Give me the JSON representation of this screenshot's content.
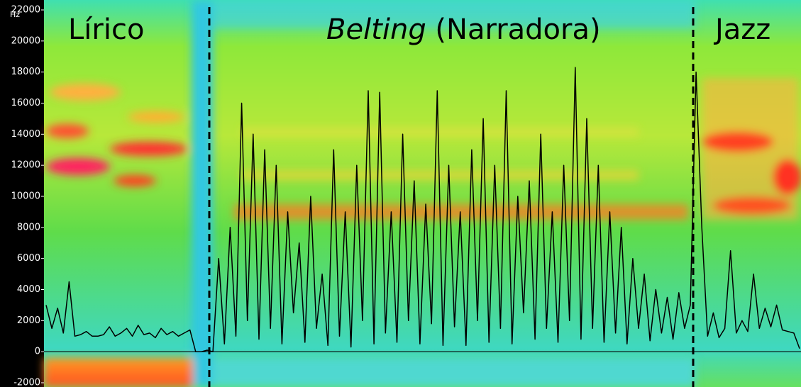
{
  "chart_data": {
    "type": "line",
    "y_unit": "Hz",
    "annotations": [
      "Lírico",
      "Belting",
      "(Narradora)",
      "Jazz"
    ],
    "series": [
      {
        "color": "#000000",
        "values": [
          3000,
          1500,
          2800,
          1200,
          4500,
          1000,
          1100,
          1300,
          1000,
          1000,
          1100,
          1600,
          1000,
          1200,
          1500,
          1000,
          1700,
          1100,
          1200,
          900,
          1500,
          1100,
          1300,
          1000,
          1200,
          1400,
          0,
          0,
          100,
          0,
          6000,
          500,
          8000,
          1000,
          16000,
          2000,
          14000,
          800,
          13000,
          1500,
          12000,
          500,
          9000,
          2500,
          7000,
          600,
          10000,
          1500,
          5000,
          400,
          13000,
          1000,
          9000,
          300,
          12000,
          2000,
          16800,
          500,
          16700,
          1200,
          9000,
          600,
          14000,
          2000,
          11000,
          500,
          9500,
          1800,
          16800,
          400,
          12000,
          1600,
          9000,
          400,
          13000,
          2000,
          15000,
          600,
          12000,
          1500,
          16800,
          500,
          10000,
          2500,
          11000,
          800,
          14000,
          1500,
          9000,
          600,
          12000,
          2000,
          18300,
          800,
          15000,
          1500,
          12000,
          600,
          9000,
          1200,
          8000,
          500,
          6000,
          1500,
          5000,
          700,
          4000,
          1200,
          3500,
          800,
          3800,
          1500,
          3000,
          18000,
          8000,
          1000,
          2500,
          900,
          1500,
          6500,
          1200,
          2000,
          1300,
          5000,
          1500,
          2800,
          1600,
          3000,
          1400,
          1300,
          1200,
          200
        ]
      }
    ],
    "ylim": [
      -2000,
      22000
    ],
    "yticks": [
      -2000,
      0,
      2000,
      4000,
      6000,
      8000,
      10000,
      12000,
      14000,
      16000,
      18000,
      20000,
      22000
    ]
  }
}
